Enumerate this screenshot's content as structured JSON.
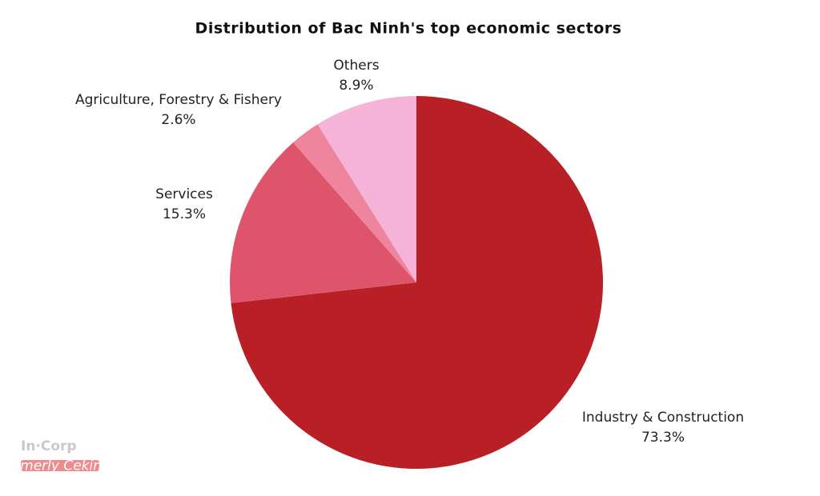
{
  "chart_data": {
    "type": "pie",
    "title": "Distribution of Bac Ninh's top economic sectors",
    "categories": [
      "Industry & Construction",
      "Services",
      "Agriculture, Forestry & Fishery",
      "Others"
    ],
    "values": [
      73.3,
      15.3,
      2.6,
      8.9
    ],
    "value_labels": [
      "73.3%",
      "15.3%",
      "2.6%",
      "8.9%"
    ],
    "colors": [
      "#b82025",
      "#dd546b",
      "#ef849f",
      "#f6b3d8"
    ]
  },
  "logo": {
    "brand": "In·Corp",
    "tagline": "formerly Cekindo"
  }
}
